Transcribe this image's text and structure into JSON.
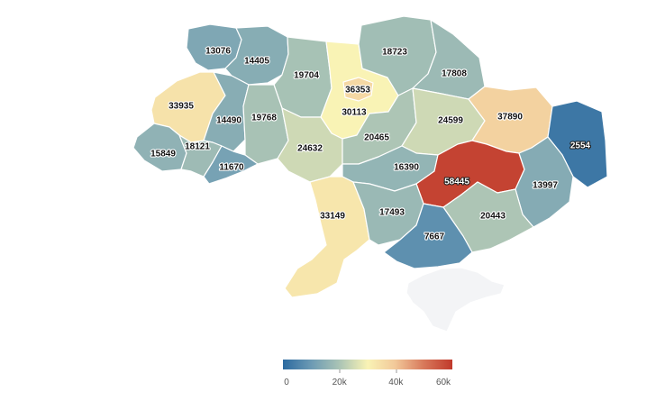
{
  "colors": {
    "scale": [
      "#2c6aa0",
      "#6d9bb4",
      "#a9c3b5",
      "#f9f3b5",
      "#f2c99a",
      "#d8795b",
      "#c0392b"
    ],
    "no_data": "#f3f4f6"
  },
  "map": {
    "regions": [
      {
        "id": "volyn",
        "value": 13076
      },
      {
        "id": "rivne",
        "value": 14405
      },
      {
        "id": "zhytomyr",
        "value": 19704
      },
      {
        "id": "kyiv-city",
        "value": 36353
      },
      {
        "id": "kyiv-oblast",
        "value": 30113
      },
      {
        "id": "chernihiv",
        "value": 18723
      },
      {
        "id": "sumy",
        "value": 17808
      },
      {
        "id": "lviv",
        "value": 33935
      },
      {
        "id": "ternopil",
        "value": 14490
      },
      {
        "id": "khmelnytskyi",
        "value": 19768
      },
      {
        "id": "vinnytsia",
        "value": 24632
      },
      {
        "id": "cherkasy",
        "value": 20465
      },
      {
        "id": "poltava",
        "value": 24599
      },
      {
        "id": "kharkiv",
        "value": 37890
      },
      {
        "id": "luhansk",
        "value": 2554
      },
      {
        "id": "zakarpattia",
        "value": 15849
      },
      {
        "id": "ivano-frankivsk",
        "value": 18121
      },
      {
        "id": "chernivtsi",
        "value": 11670
      },
      {
        "id": "kirovohrad",
        "value": 16390
      },
      {
        "id": "dnipropetrovsk",
        "value": 58445
      },
      {
        "id": "donetsk",
        "value": 13997
      },
      {
        "id": "odesa",
        "value": 33149
      },
      {
        "id": "mykolaiv",
        "value": 17493
      },
      {
        "id": "zaporizhzhia",
        "value": 20443
      },
      {
        "id": "kherson",
        "value": 7667
      },
      {
        "id": "crimea",
        "value": null
      }
    ]
  },
  "legend": {
    "min": 0,
    "max": 60000,
    "ticks": [
      {
        "label": "0",
        "value": 0
      },
      {
        "label": "20k",
        "value": 20000
      },
      {
        "label": "40k",
        "value": 40000
      },
      {
        "label": "60k",
        "value": 60000
      }
    ]
  }
}
